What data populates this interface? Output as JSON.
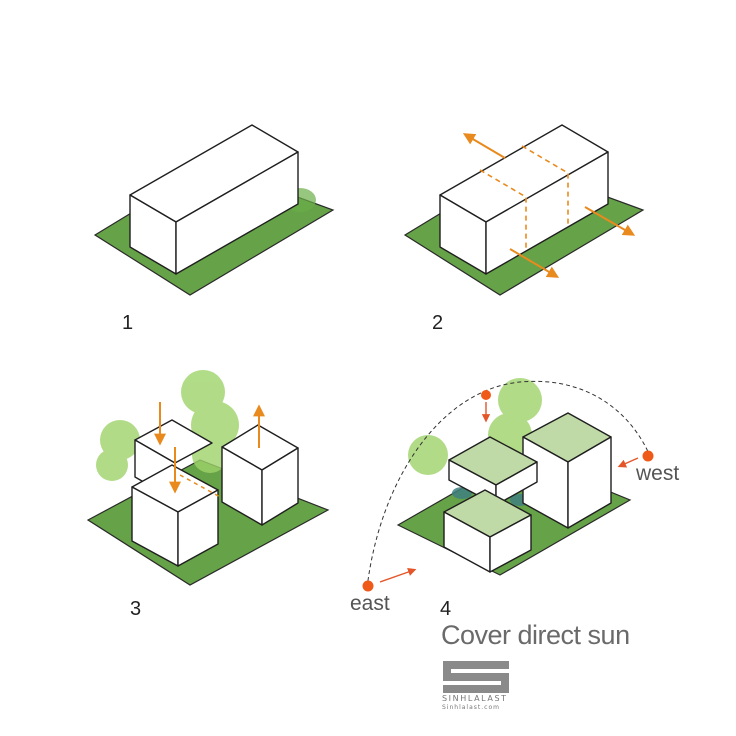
{
  "steps": [
    {
      "number": "1"
    },
    {
      "number": "2"
    },
    {
      "number": "3"
    },
    {
      "number": "4"
    }
  ],
  "sun_path": {
    "east_label": "east",
    "west_label": "west"
  },
  "caption": "Cover direct sun",
  "logo": {
    "text": "SINHLALAST",
    "sub_text": "Sinhlalast.com"
  },
  "colors": {
    "ground": "#5e9e3e",
    "tree": "#9ed36a",
    "arrow": "#e98a1e",
    "sun": "#f05a18",
    "outline": "#1f1f1f",
    "water": "#3e8080",
    "caption": "#6a6a6a"
  }
}
